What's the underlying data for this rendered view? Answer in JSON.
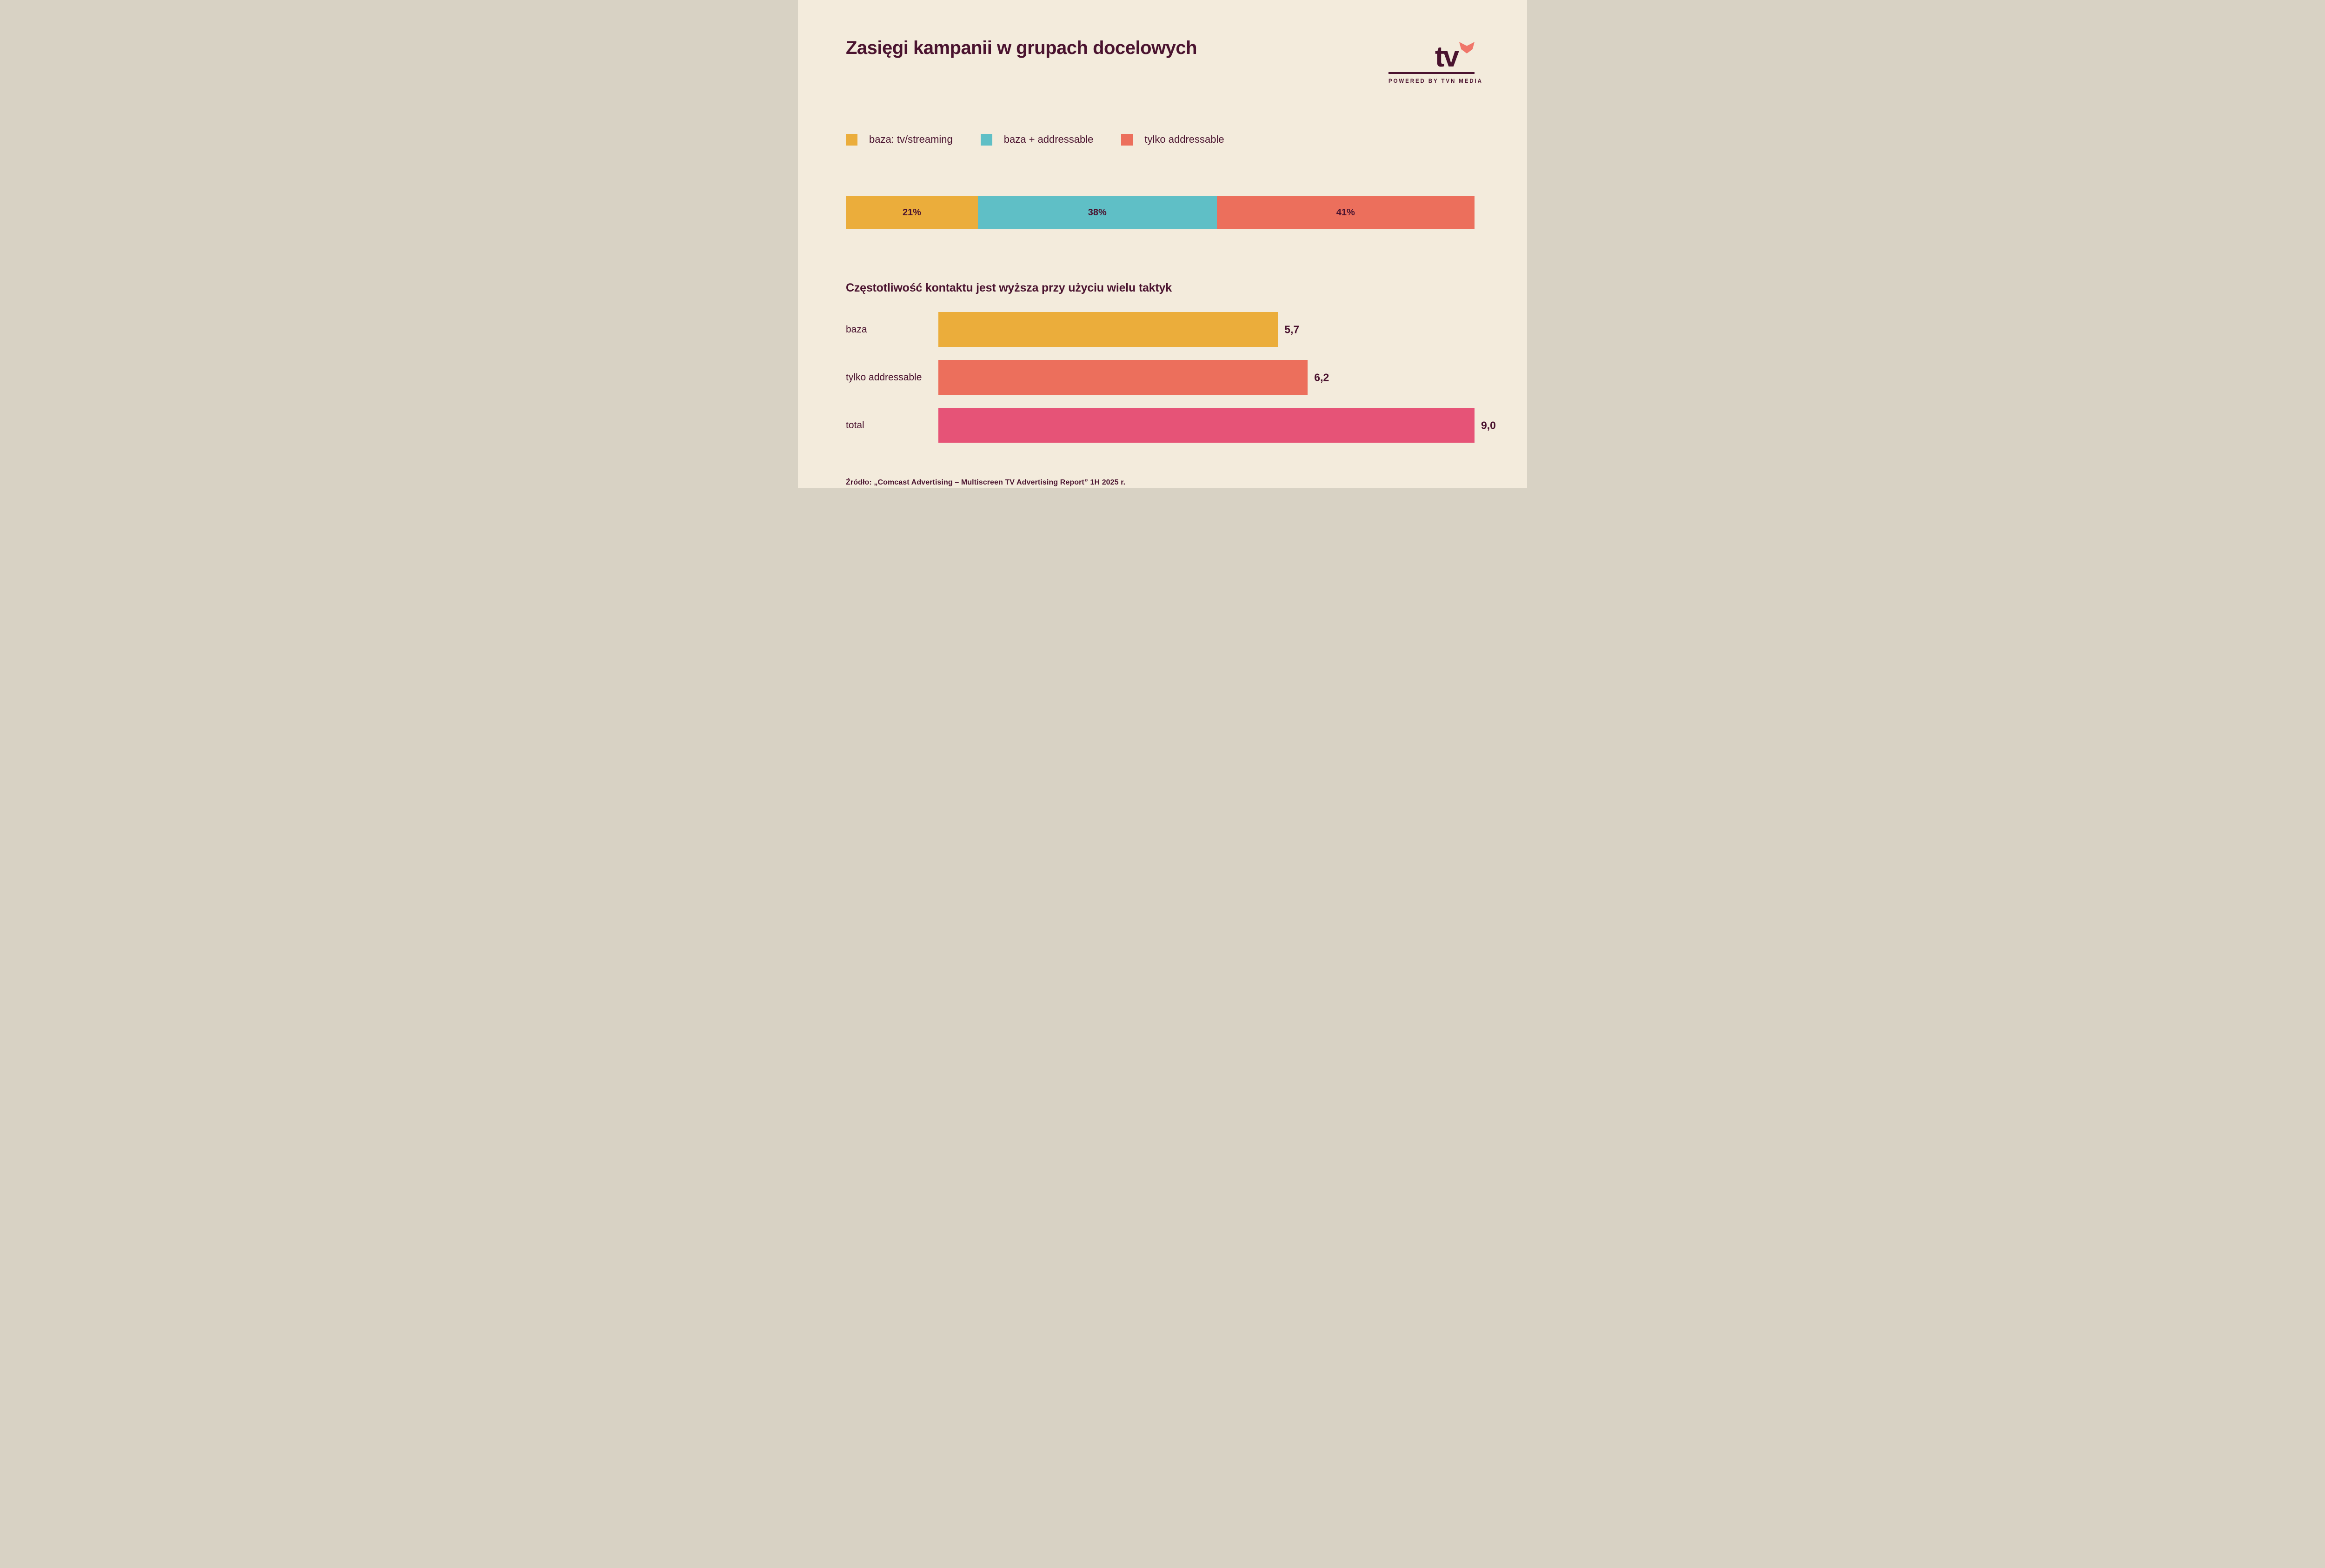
{
  "page": {
    "title": "Zasięgi kampanii w grupach docelowych",
    "background": "#F3EBDC",
    "text_color": "#4A132F",
    "source": "Źródło: „Comcast Advertising – Multiscreen TV Advertising Report” 1H 2025 r."
  },
  "logo": {
    "text": "tv",
    "tagline": "POWERED BY TVN MEDIA",
    "heart_color": "#F0766A"
  },
  "legend": {
    "items": [
      {
        "label": "baza: tv/streaming",
        "color": "#EBAD3B"
      },
      {
        "label": "baza + addressable",
        "color": "#5FBFC6"
      },
      {
        "label": "tylko addressable",
        "color": "#EC6F5C"
      }
    ]
  },
  "chart_data": [
    {
      "type": "bar",
      "variant": "stacked-horizontal",
      "title": "Zasięgi kampanii w grupach docelowych",
      "categories": [
        "baza: tv/streaming",
        "baza + addressable",
        "tylko addressable"
      ],
      "values": [
        21,
        38,
        41
      ],
      "labels": [
        "21%",
        "38%",
        "41%"
      ],
      "colors": [
        "#EBAD3B",
        "#5FBFC6",
        "#EC6F5C"
      ],
      "unit": "%",
      "total": 100,
      "legend_position": "top",
      "grid": false
    },
    {
      "type": "bar",
      "variant": "horizontal",
      "title": "Częstotliwość kontaktu jest wyższa przy użyciu wielu taktyk",
      "categories": [
        "baza",
        "tylko addressable",
        "total"
      ],
      "values": [
        5.7,
        6.2,
        9.0
      ],
      "labels": [
        "5,7",
        "6,2",
        "9,0"
      ],
      "colors": [
        "#EBAD3B",
        "#EC6F5C",
        "#E65377"
      ],
      "xlim": [
        0,
        9.0
      ],
      "grid": false
    }
  ]
}
